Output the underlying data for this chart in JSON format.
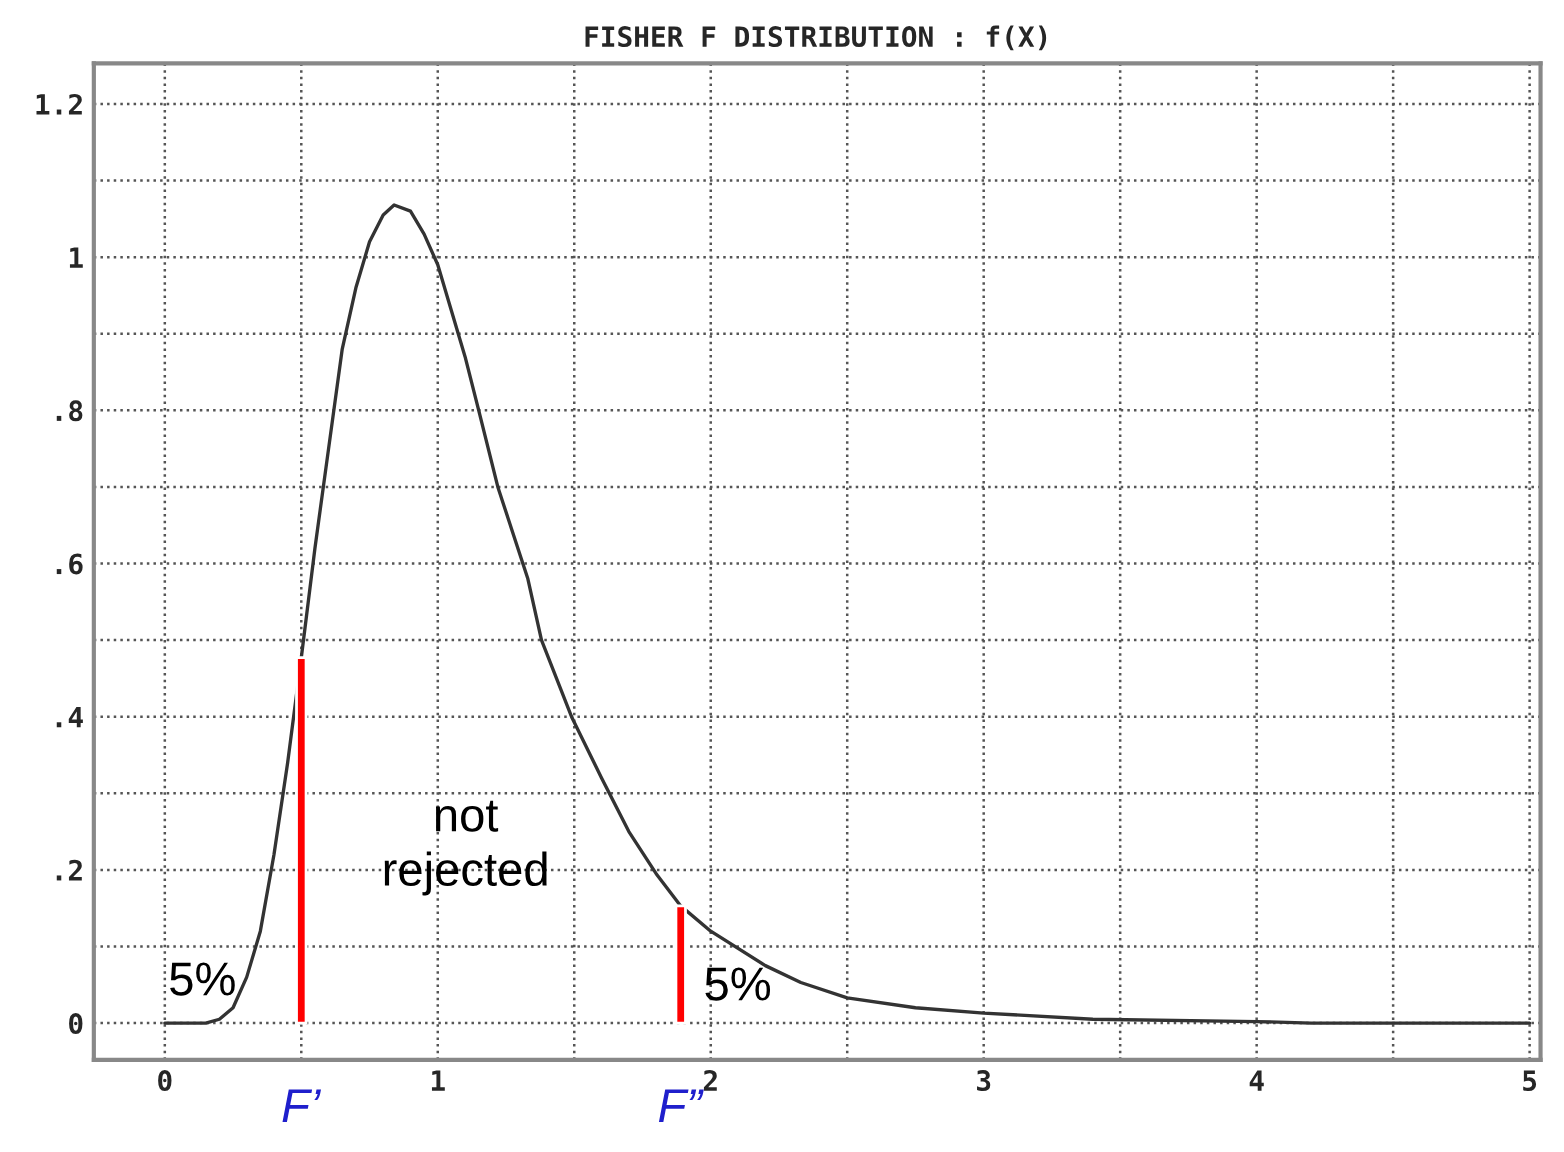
{
  "chart_data": {
    "type": "line",
    "title": "FISHER F DISTRIBUTION : f(X)",
    "series": [
      {
        "color": "#333333",
        "x": [
          0,
          0.15,
          0.2,
          0.25,
          0.3,
          0.35,
          0.4,
          0.45,
          0.5,
          0.55,
          0.6,
          0.65,
          0.7,
          0.75,
          0.8,
          0.84,
          0.9,
          0.95,
          1.0,
          1.05,
          1.1,
          1.15,
          1.22,
          1.33,
          1.38,
          1.49,
          1.6,
          1.7,
          1.8,
          1.89,
          2.0,
          2.2,
          2.33,
          2.5,
          2.75,
          3.0,
          3.4,
          4.0,
          4.2,
          5
        ],
        "values": [
          0,
          0,
          0.005,
          0.02,
          0.06,
          0.12,
          0.22,
          0.34,
          0.477,
          0.62,
          0.75,
          0.88,
          0.96,
          1.02,
          1.055,
          1.068,
          1.06,
          1.03,
          0.99,
          0.93,
          0.87,
          0.8,
          0.7,
          0.58,
          0.5,
          0.4,
          0.32,
          0.25,
          0.195,
          0.153,
          0.12,
          0.075,
          0.053,
          0.033,
          0.02,
          0.013,
          0.005,
          0.002,
          0,
          0
        ]
      },
      {
        "type": "bar",
        "color": "#ff0000",
        "x": [
          0.5,
          1.89
        ],
        "values": [
          0.477,
          0.153
        ]
      }
    ],
    "annotations": [
      "5%",
      "not\nrejected",
      "5%",
      "F’",
      "F”"
    ],
    "xlim": [
      -0.26,
      5.04
    ],
    "ylim": [
      -0.048,
      1.253
    ],
    "xticks": [
      0,
      {
        "value": 0.5,
        "label": null
      },
      1,
      {
        "value": 1.5,
        "label": null
      },
      2,
      {
        "value": 2.5,
        "label": null
      },
      3,
      {
        "value": 3.5,
        "label": null
      },
      4,
      {
        "value": 4.5,
        "label": null
      },
      5
    ],
    "yticks": [
      0,
      {
        "value": 0.1,
        "label": null
      },
      {
        "value": 0.2,
        "label": ".2"
      },
      {
        "value": 0.3,
        "label": null
      },
      {
        "value": 0.4,
        "label": ".4"
      },
      {
        "value": 0.5,
        "label": null
      },
      {
        "value": 0.6,
        "label": ".6"
      },
      {
        "value": 0.7,
        "label": null
      },
      {
        "value": 0.8,
        "label": ".8"
      },
      {
        "value": 0.9,
        "label": null
      },
      1,
      {
        "value": 1.1,
        "label": null
      },
      1.2
    ],
    "grid": true,
    "line_style": "solid",
    "marker": "none"
  }
}
